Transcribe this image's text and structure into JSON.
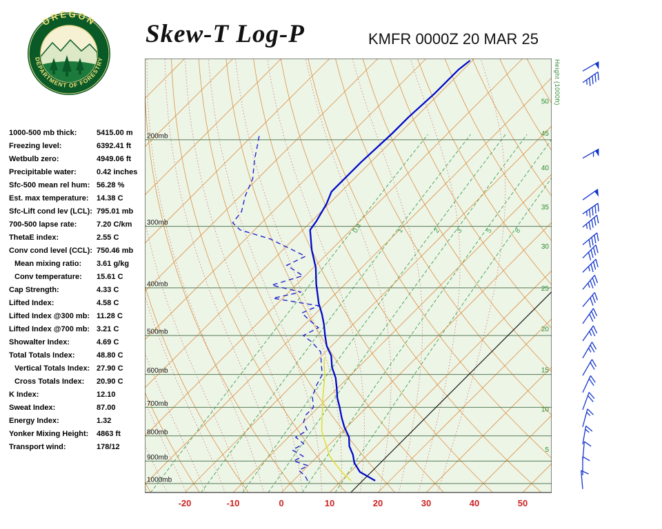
{
  "header": {
    "title": "Skew-T Log-P",
    "station_line": "KMFR 0000Z 20 MAR 25"
  },
  "logo": {
    "top_text": "OREGON",
    "bottom_text": "DEPARTMENT OF FORESTRY"
  },
  "indices": [
    {
      "label": "1000-500 mb thick:",
      "value": "5415.00 m"
    },
    {
      "label": "Freezing level:",
      "value": "6392.41 ft"
    },
    {
      "label": "Wetbulb zero:",
      "value": "4949.06 ft"
    },
    {
      "label": "Precipitable water:",
      "value": "0.42 inches"
    },
    {
      "label": "Sfc-500 mean rel hum:",
      "value": "56.28 %"
    },
    {
      "label": "Est. max temperature:",
      "value": "14.38 C"
    },
    {
      "label": "Sfc-Lift cond lev (LCL):",
      "value": "795.01 mb"
    },
    {
      "label": "700-500 lapse rate:",
      "value": "7.20 C/km"
    },
    {
      "label": "ThetaE index:",
      "value": "2.55 C"
    },
    {
      "label": "Conv cond level (CCL):",
      "value": "750.46 mb"
    },
    {
      "label": "Mean mixing ratio:",
      "value": "3.61 g/kg",
      "indent": true
    },
    {
      "label": "Conv temperature:",
      "value": "15.61 C",
      "indent": true
    },
    {
      "label": "Cap Strength:",
      "value": "4.33 C"
    },
    {
      "label": "Lifted Index:",
      "value": "4.58 C"
    },
    {
      "label": "Lifted Index @300 mb:",
      "value": "11.28 C"
    },
    {
      "label": "Lifted Index @700 mb:",
      "value": "3.21 C"
    },
    {
      "label": "Showalter Index:",
      "value": "4.69 C"
    },
    {
      "label": "Total Totals Index:",
      "value": "48.80 C"
    },
    {
      "label": "Vertical Totals Index:",
      "value": "27.90 C",
      "indent": true
    },
    {
      "label": "Cross Totals Index:",
      "value": "20.90 C",
      "indent": true
    },
    {
      "label": "K Index:",
      "value": "12.10"
    },
    {
      "label": "Sweat Index:",
      "value": "87.00"
    },
    {
      "label": "Energy Index:",
      "value": "1.32"
    },
    {
      "label": "Yonker Mixing Height:",
      "value": "4863 ft"
    },
    {
      "label": "Transport wind:",
      "value": "178/12"
    }
  ],
  "chart_data": {
    "type": "line",
    "title": "Skew-T Log-P",
    "subtitle": "KMFR 0000Z 20 MAR 25",
    "x_axis": {
      "ticks": [
        -20,
        -10,
        0,
        10,
        20,
        30,
        40,
        50
      ],
      "unit": "C"
    },
    "pressure_levels_mb": [
      200,
      300,
      400,
      500,
      600,
      700,
      800,
      900,
      1000
    ],
    "pressure_label_suffix": "mb",
    "pressure_range_mb": [
      137,
      1044
    ],
    "height_axis": {
      "label": "Height (1000ft)",
      "ticks": [
        {
          "label": "50",
          "p": 167
        },
        {
          "label": "45",
          "p": 194
        },
        {
          "label": "40",
          "p": 228
        },
        {
          "label": "35",
          "p": 274
        },
        {
          "label": "30",
          "p": 329
        },
        {
          "label": "25",
          "p": 401
        },
        {
          "label": "20",
          "p": 485
        },
        {
          "label": "15",
          "p": 587
        },
        {
          "label": "10",
          "p": 706
        },
        {
          "label": "5",
          "p": 853
        }
      ]
    },
    "mixing_ratio_lines": {
      "values": [
        0.4,
        1,
        2,
        3,
        5,
        8
      ],
      "label_p": 310
    },
    "isotherm_step_c": 10,
    "reference_line_t_c": 14.38,
    "temperature_profile": [
      {
        "p": 987,
        "t": 17
      },
      {
        "p": 947,
        "t": 12
      },
      {
        "p": 908,
        "t": 9
      },
      {
        "p": 874,
        "t": 7
      },
      {
        "p": 840,
        "t": 4.5
      },
      {
        "p": 804,
        "t": 2.5
      },
      {
        "p": 768,
        "t": -0.5
      },
      {
        "p": 735,
        "t": -3
      },
      {
        "p": 701,
        "t": -5.5
      },
      {
        "p": 670,
        "t": -8
      },
      {
        "p": 642,
        "t": -10
      },
      {
        "p": 610,
        "t": -12.5
      },
      {
        "p": 580,
        "t": -15.5
      },
      {
        "p": 550,
        "t": -18
      },
      {
        "p": 525,
        "t": -21
      },
      {
        "p": 500,
        "t": -23.5
      },
      {
        "p": 475,
        "t": -26
      },
      {
        "p": 453,
        "t": -28.5
      },
      {
        "p": 430,
        "t": -31.5
      },
      {
        "p": 409,
        "t": -34
      },
      {
        "p": 393,
        "t": -36
      },
      {
        "p": 364,
        "t": -39.5
      },
      {
        "p": 335,
        "t": -44
      },
      {
        "p": 305,
        "t": -48.5
      },
      {
        "p": 293,
        "t": -49
      },
      {
        "p": 270,
        "t": -50.5
      },
      {
        "p": 255,
        "t": -52
      },
      {
        "p": 244,
        "t": -52
      },
      {
        "p": 222,
        "t": -52
      },
      {
        "p": 194,
        "t": -51.5
      },
      {
        "p": 180,
        "t": -51.5
      },
      {
        "p": 161,
        "t": -51
      },
      {
        "p": 144,
        "t": -51
      },
      {
        "p": 138,
        "t": -50.5
      }
    ],
    "dewpoint_profile": [
      {
        "p": 987,
        "td": 3
      },
      {
        "p": 965,
        "td": 1.5
      },
      {
        "p": 940,
        "td": -1
      },
      {
        "p": 920,
        "td": 0
      },
      {
        "p": 900,
        "td": -4
      },
      {
        "p": 880,
        "td": -3
      },
      {
        "p": 855,
        "td": -6.5
      },
      {
        "p": 830,
        "td": -5.5
      },
      {
        "p": 805,
        "td": -8.5
      },
      {
        "p": 780,
        "td": -7.5
      },
      {
        "p": 750,
        "td": -10
      },
      {
        "p": 725,
        "td": -11
      },
      {
        "p": 700,
        "td": -11
      },
      {
        "p": 665,
        "td": -13.5
      },
      {
        "p": 630,
        "td": -15
      },
      {
        "p": 600,
        "td": -16
      },
      {
        "p": 570,
        "td": -18.5
      },
      {
        "p": 540,
        "td": -21
      },
      {
        "p": 515,
        "td": -25
      },
      {
        "p": 500,
        "td": -28
      },
      {
        "p": 482,
        "td": -26.5
      },
      {
        "p": 465,
        "td": -30
      },
      {
        "p": 450,
        "td": -33
      },
      {
        "p": 435,
        "td": -31
      },
      {
        "p": 420,
        "td": -42
      },
      {
        "p": 408,
        "td": -37.5
      },
      {
        "p": 395,
        "td": -45
      },
      {
        "p": 378,
        "td": -40.5
      },
      {
        "p": 360,
        "td": -46
      },
      {
        "p": 345,
        "td": -44
      },
      {
        "p": 330,
        "td": -50
      },
      {
        "p": 318,
        "td": -55
      },
      {
        "p": 305,
        "td": -63
      },
      {
        "p": 295,
        "td": -66
      },
      {
        "p": 280,
        "td": -66.5
      },
      {
        "p": 260,
        "td": -69
      },
      {
        "p": 240,
        "td": -71
      },
      {
        "p": 220,
        "td": -74.5
      },
      {
        "p": 205,
        "td": -77
      },
      {
        "p": 194,
        "td": -79
      }
    ],
    "wetbulb_profile": [
      {
        "p": 987,
        "tw": 12
      },
      {
        "p": 950,
        "tw": 8.5
      },
      {
        "p": 915,
        "tw": 5.5
      },
      {
        "p": 880,
        "tw": 2.5
      },
      {
        "p": 850,
        "tw": 0.5
      },
      {
        "p": 815,
        "tw": -2
      },
      {
        "p": 780,
        "tw": -4.5
      },
      {
        "p": 745,
        "tw": -6.5
      },
      {
        "p": 710,
        "tw": -8.5
      },
      {
        "p": 670,
        "tw": -11
      },
      {
        "p": 630,
        "tw": -13.5
      },
      {
        "p": 600,
        "tw": -15.5
      },
      {
        "p": 575,
        "tw": -17.5
      },
      {
        "p": 555,
        "tw": -19
      }
    ],
    "winds": [
      {
        "p": 1026,
        "dir": 175,
        "spd": 8
      },
      {
        "p": 962,
        "dir": 180,
        "spd": 10
      },
      {
        "p": 896,
        "dir": 185,
        "spd": 12
      },
      {
        "p": 832,
        "dir": 190,
        "spd": 15
      },
      {
        "p": 767,
        "dir": 195,
        "spd": 15
      },
      {
        "p": 708,
        "dir": 200,
        "spd": 18
      },
      {
        "p": 653,
        "dir": 205,
        "spd": 20
      },
      {
        "p": 603,
        "dir": 210,
        "spd": 22
      },
      {
        "p": 556,
        "dir": 210,
        "spd": 25
      },
      {
        "p": 513,
        "dir": 215,
        "spd": 25
      },
      {
        "p": 473,
        "dir": 215,
        "spd": 30
      },
      {
        "p": 437,
        "dir": 220,
        "spd": 30
      },
      {
        "p": 403,
        "dir": 220,
        "spd": 35
      },
      {
        "p": 372,
        "dir": 225,
        "spd": 35
      },
      {
        "p": 348,
        "dir": 225,
        "spd": 40
      },
      {
        "p": 327,
        "dir": 230,
        "spd": 40
      },
      {
        "p": 301,
        "dir": 230,
        "spd": 45
      },
      {
        "p": 283,
        "dir": 235,
        "spd": 45
      },
      {
        "p": 265,
        "dir": 235,
        "spd": 50
      },
      {
        "p": 218,
        "dir": 240,
        "spd": 55
      },
      {
        "p": 153,
        "dir": 235,
        "spd": 45
      },
      {
        "p": 145,
        "dir": 240,
        "spd": 50
      }
    ],
    "colors": {
      "background": "#edf5e7",
      "isobar": "#567a56",
      "isotherm": "#dd9144",
      "dry_adiabat": "#dd9144",
      "moist_adiabat": "#c97a6e",
      "mixing_ratio": "#3f9e4f",
      "temperature_trace": "#0008c8",
      "dewpoint_trace": "#2020cc",
      "wetbulb_trace": "#e0df3a",
      "reference_line": "#1a1a1a",
      "wind_barb": "#1133cc",
      "pressure_label": "#111111",
      "temp_tick": "#cc2222",
      "height_label": "#2e8b2e",
      "border": "#3a3a3a"
    }
  }
}
